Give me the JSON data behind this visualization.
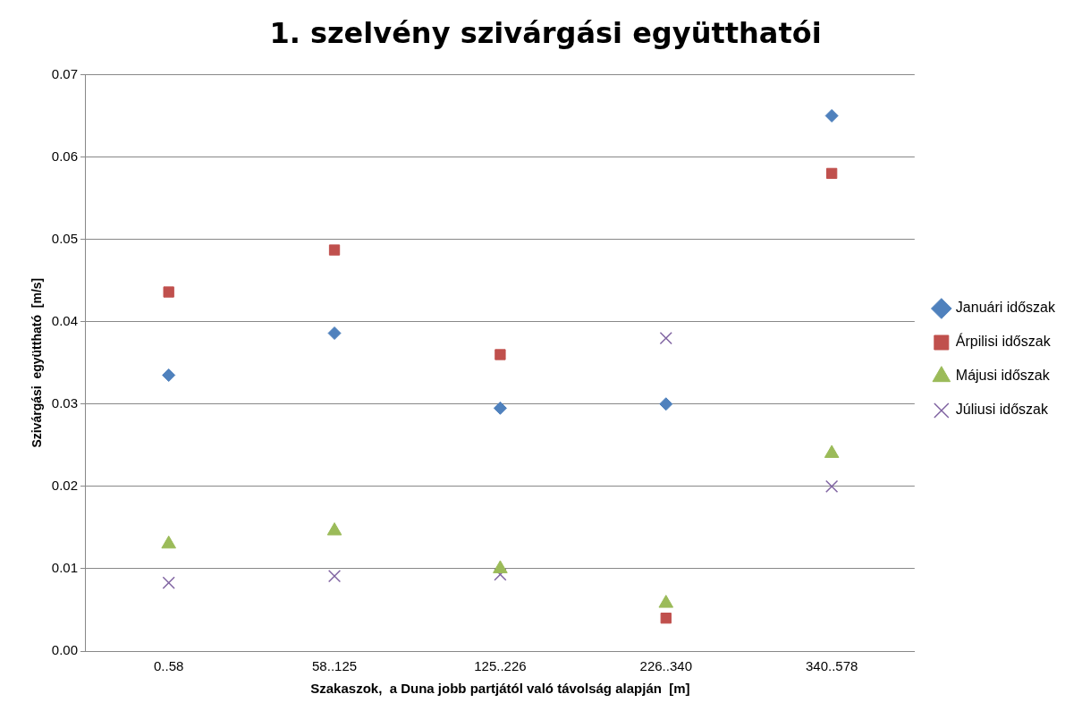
{
  "chart_data": {
    "type": "scatter",
    "title": "1. szelvény szivárgási együtthatói",
    "xlabel": "Szakaszok,  a Duna jobb partjától való távolság alapján  [m]",
    "ylabel": "Szivárgási  együttható  [m/s]",
    "categories": [
      "0..58",
      "58..125",
      "125..226",
      "226..340",
      "340..578"
    ],
    "series": [
      {
        "name": "Januári időszak",
        "color": "#4f81bd",
        "marker": "diamond",
        "values": [
          0.0335,
          0.0386,
          0.0295,
          0.03,
          0.065
        ]
      },
      {
        "name": "Árpilisi időszak",
        "color": "#c0504d",
        "marker": "square",
        "values": [
          0.0436,
          0.0487,
          0.036,
          0.004,
          0.058
        ]
      },
      {
        "name": "Májusi időszak",
        "color": "#9bbb59",
        "marker": "triangle",
        "values": [
          0.013,
          0.0146,
          0.01,
          0.0058,
          0.024
        ]
      },
      {
        "name": "Júliusi időszak",
        "color": "#8064a2",
        "marker": "cross",
        "values": [
          0.0083,
          0.0091,
          0.0093,
          0.038,
          0.02
        ]
      }
    ],
    "ylim": [
      0,
      0.07
    ],
    "yticks": [
      {
        "value": 0,
        "label": "0.00"
      },
      0.01,
      0.02,
      0.03,
      0.04,
      0.05,
      0.06,
      0.07
    ],
    "grid": "y",
    "legend": "right"
  }
}
